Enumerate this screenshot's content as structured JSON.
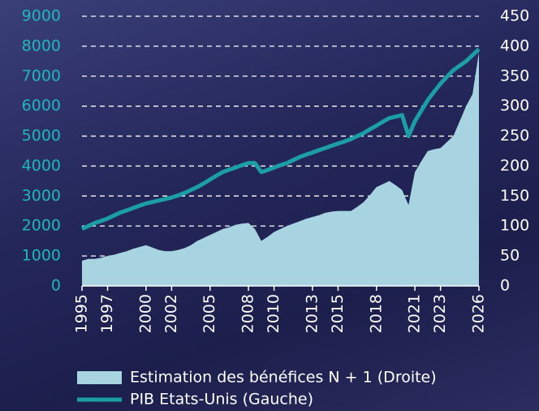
{
  "chart_data": {
    "type": "line",
    "x": [
      1995,
      1995.5,
      1996,
      1996.5,
      1997,
      1997.5,
      1998,
      1998.5,
      1999,
      1999.5,
      2000,
      2000.5,
      2001,
      2001.5,
      2002,
      2002.5,
      2003,
      2003.5,
      2004,
      2004.5,
      2005,
      2005.5,
      2006,
      2006.5,
      2007,
      2007.5,
      2008,
      2008.5,
      2009,
      2009.5,
      2010,
      2010.5,
      2011,
      2011.5,
      2012,
      2012.5,
      2013,
      2013.5,
      2014,
      2014.5,
      2015,
      2015.5,
      2016,
      2016.5,
      2017,
      2017.5,
      2018,
      2018.5,
      2019,
      2019.5,
      2020,
      2020.5,
      2021,
      2021.5,
      2022,
      2022.5,
      2023,
      2023.5,
      2024,
      2024.5,
      2025,
      2025.5,
      2026
    ],
    "series": [
      {
        "name": "Estimation des bénéfices N + 1 (Droite)",
        "type": "area",
        "axis": "y2",
        "color": "#a8d4e2",
        "values": [
          42,
          45,
          45,
          47,
          50,
          52,
          55,
          58,
          62,
          65,
          68,
          64,
          60,
          58,
          58,
          60,
          63,
          68,
          75,
          80,
          85,
          90,
          95,
          98,
          102,
          104,
          105,
          95,
          75,
          82,
          90,
          95,
          100,
          104,
          108,
          112,
          115,
          118,
          122,
          124,
          125,
          125,
          125,
          132,
          140,
          152,
          165,
          170,
          175,
          168,
          160,
          135,
          190,
          208,
          225,
          228,
          230,
          240,
          250,
          275,
          300,
          320,
          390
        ]
      },
      {
        "name": "PIB Etats-Unis (Gauche)",
        "type": "line",
        "color": "#1b9ea5",
        "values": [
          1900,
          2000,
          2100,
          2170,
          2250,
          2350,
          2450,
          2520,
          2600,
          2680,
          2750,
          2800,
          2850,
          2900,
          2950,
          3020,
          3100,
          3200,
          3300,
          3420,
          3550,
          3680,
          3800,
          3880,
          3950,
          4030,
          4100,
          4100,
          3800,
          3870,
          3950,
          4030,
          4100,
          4200,
          4300,
          4380,
          4450,
          4530,
          4600,
          4680,
          4750,
          4820,
          4900,
          5000,
          5100,
          5230,
          5350,
          5480,
          5600,
          5650,
          5700,
          5000,
          5500,
          5850,
          6200,
          6480,
          6750,
          6980,
          7200,
          7350,
          7500,
          7700,
          7900
        ]
      }
    ],
    "xlim": [
      1995,
      2026
    ],
    "xticks": [
      1995,
      1997,
      2000,
      2002,
      2005,
      2008,
      2010,
      2013,
      2015,
      2018,
      2021,
      2023,
      2026
    ],
    "ylim": [
      0,
      9000
    ],
    "yticks": [
      0,
      1000,
      2000,
      3000,
      4000,
      5000,
      6000,
      7000,
      8000,
      9000
    ],
    "y2lim": [
      0,
      450
    ],
    "y2ticks": [
      0,
      50,
      100,
      150,
      200,
      250,
      300,
      350,
      400,
      450
    ],
    "grid": true,
    "legend": "bottom"
  }
}
